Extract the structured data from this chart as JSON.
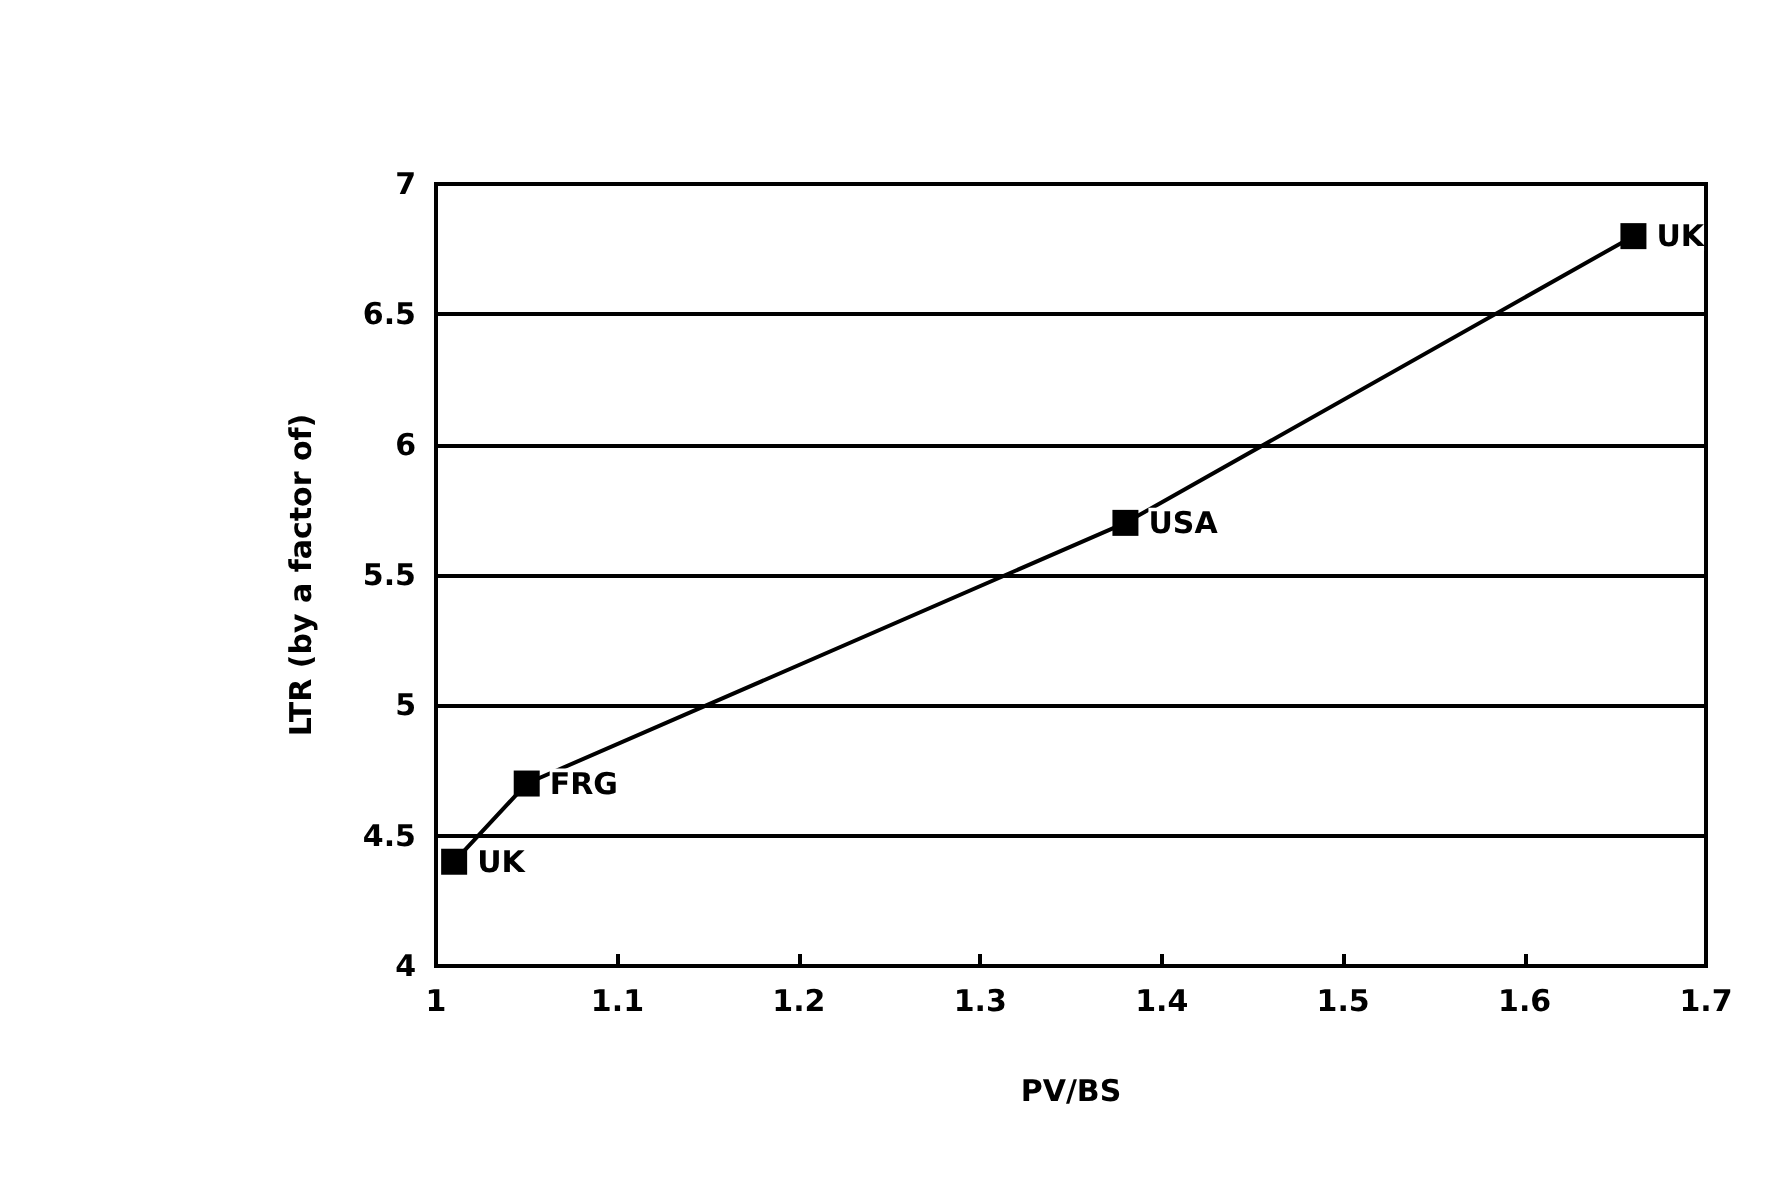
{
  "chart_data": {
    "type": "line",
    "xlabel": "PV/BS",
    "ylabel": "LTR (by a factor of)",
    "x": [
      1.01,
      1.05,
      1.38,
      1.66
    ],
    "series": [
      {
        "color": "#000000",
        "values": [
          4.4,
          4.7,
          5.7,
          6.8
        ]
      }
    ],
    "xlim": [
      1,
      1.7
    ],
    "xticks": [
      1,
      1.1,
      1.2,
      1.3,
      1.4,
      1.5,
      1.6,
      1.7
    ],
    "ylim": [
      4,
      7
    ],
    "yticks": [
      4,
      4.5,
      5,
      5.5,
      6,
      6.5,
      7
    ],
    "grid": "y",
    "marker": "square",
    "line_style": "solid",
    "annotations": [
      {
        "text": "UK",
        "x": 1.01,
        "y": 4.4
      },
      {
        "text": "FRG",
        "x": 1.05,
        "y": 4.7
      },
      {
        "text": "USA",
        "x": 1.38,
        "y": 5.7
      },
      {
        "text": "UK",
        "x": 1.66,
        "y": 6.8
      }
    ]
  }
}
